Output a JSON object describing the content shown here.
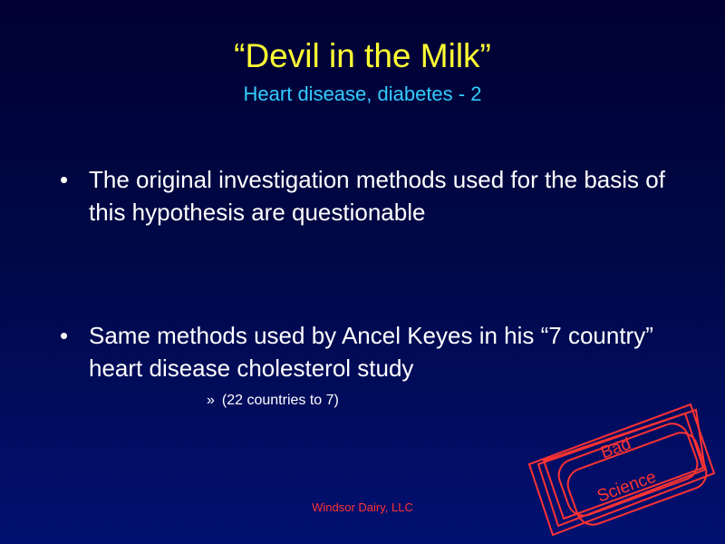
{
  "slide": {
    "title": "“Devil in the Milk”",
    "subtitle": "Heart disease, diabetes - 2",
    "bullets": [
      {
        "marker": "•",
        "text": "The original investigation methods used for the basis of this hypothesis are questionable"
      },
      {
        "marker": "•",
        "text": "Same methods used by Ancel Keyes in his “7 country” heart disease cholesterol study"
      }
    ],
    "subnote": {
      "marker": "»",
      "text": "(22 countries to 7)"
    },
    "footer": "Windsor Dairy, LLC",
    "stamp": {
      "line1": "Bad",
      "line2": "Science"
    }
  },
  "colors": {
    "background_top": "#000033",
    "background_bottom": "#021070",
    "title": "#ffff33",
    "subtitle": "#33ccff",
    "body_text": "#ffffff",
    "footer": "#ff3333",
    "stamp": "#ff3333"
  }
}
